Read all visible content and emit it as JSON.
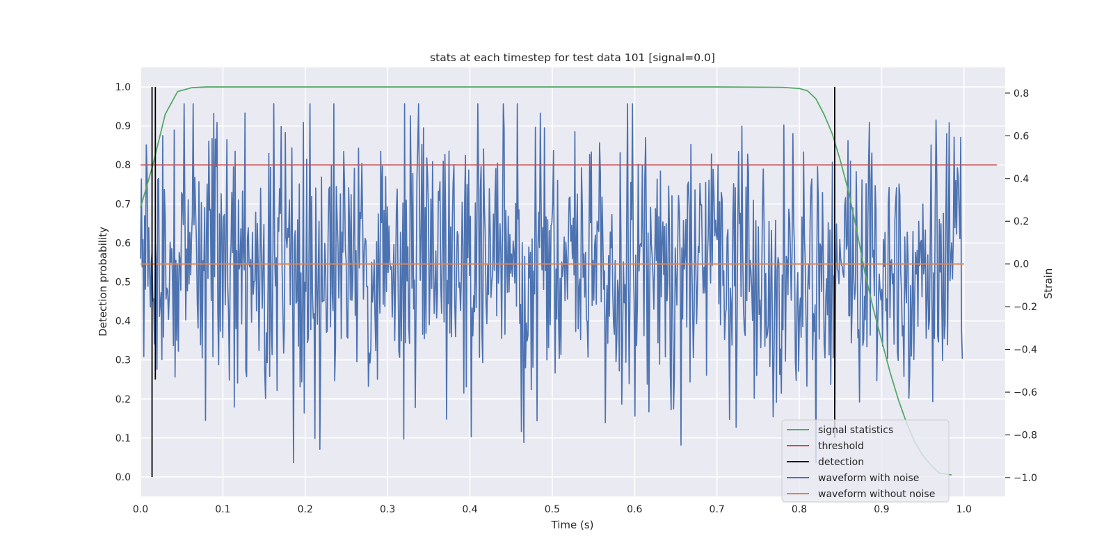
{
  "chart_data": {
    "type": "line",
    "title": "stats at each timestep for test data 101 [signal=0.0]",
    "xlabel": "Time (s)",
    "ylabel": "Detection probability",
    "y2label": "Strain",
    "xlim": [
      0.0,
      1.05
    ],
    "ylim": [
      -0.05,
      1.05
    ],
    "y2lim": [
      -1.088,
      0.92
    ],
    "x_ticks": [
      0.0,
      0.1,
      0.2,
      0.3,
      0.4,
      0.5,
      0.6,
      0.7,
      0.8,
      0.9,
      1.0
    ],
    "x_tick_labels": [
      "0.0",
      "0.1",
      "0.2",
      "0.3",
      "0.4",
      "0.5",
      "0.6",
      "0.7",
      "0.8",
      "0.9",
      "1.0"
    ],
    "y_ticks": [
      0.0,
      0.1,
      0.2,
      0.3,
      0.4,
      0.5,
      0.6,
      0.7,
      0.8,
      0.9,
      1.0
    ],
    "y_tick_labels": [
      "0.0",
      "0.1",
      "0.2",
      "0.3",
      "0.4",
      "0.5",
      "0.6",
      "0.7",
      "0.8",
      "0.9",
      "1.0"
    ],
    "y2_ticks": [
      -1.0,
      -0.8,
      -0.6,
      -0.4,
      -0.2,
      0.0,
      0.2,
      0.4,
      0.6,
      0.8
    ],
    "y2_tick_labels": [
      "−1.0",
      "−0.8",
      "−0.6",
      "−0.4",
      "−0.2",
      "0.0",
      "0.2",
      "0.4",
      "0.6",
      "0.8"
    ],
    "grid": true,
    "legend_position": "lower-right",
    "legend": [
      "signal statistics",
      "threshold",
      "detection",
      "waveform with noise",
      "waveform without noise"
    ],
    "series": [
      {
        "name": "signal statistics",
        "axis": "left",
        "color": "#55a868",
        "x": [
          0.0,
          0.015,
          0.03,
          0.045,
          0.062,
          0.08,
          0.1,
          0.2,
          0.3,
          0.4,
          0.5,
          0.6,
          0.7,
          0.78,
          0.8,
          0.81,
          0.82,
          0.83,
          0.84,
          0.85,
          0.86,
          0.87,
          0.88,
          0.89,
          0.9,
          0.91,
          0.92,
          0.93,
          0.94,
          0.95,
          0.96,
          0.97,
          0.985
        ],
        "y": [
          0.69,
          0.8,
          0.93,
          0.988,
          0.998,
          1.0,
          1.0,
          1.0,
          1.0,
          1.0,
          1.0,
          1.0,
          1.0,
          0.999,
          0.996,
          0.99,
          0.97,
          0.93,
          0.88,
          0.81,
          0.73,
          0.63,
          0.52,
          0.43,
          0.35,
          0.27,
          0.2,
          0.14,
          0.09,
          0.055,
          0.03,
          0.01,
          0.005
        ]
      },
      {
        "name": "threshold",
        "axis": "left",
        "color": "#c44e52",
        "x": [
          0.0,
          1.04
        ],
        "y": [
          0.8,
          0.8
        ]
      },
      {
        "name": "detection",
        "axis": "left",
        "color": "#000000",
        "segments": [
          {
            "x": 0.014,
            "y0": 0.0,
            "y1": 1.0
          },
          {
            "x": 0.018,
            "y0": 0.25,
            "y1": 1.0
          },
          {
            "x": 0.843,
            "y0": 0.1,
            "y1": 1.0
          }
        ]
      },
      {
        "name": "waveform with noise",
        "axis": "right",
        "color": "#4c72b0",
        "x_start": 0.0,
        "x_end": 0.998,
        "n_points": 1000,
        "typical_range": [
          -0.6,
          0.7
        ],
        "extremes": {
          "min": -0.93,
          "max": 0.75
        }
      },
      {
        "name": "waveform without noise",
        "axis": "right",
        "color": "#dd8452",
        "x": [
          0.0,
          1.0
        ],
        "y": [
          0.0,
          0.0
        ]
      }
    ]
  }
}
